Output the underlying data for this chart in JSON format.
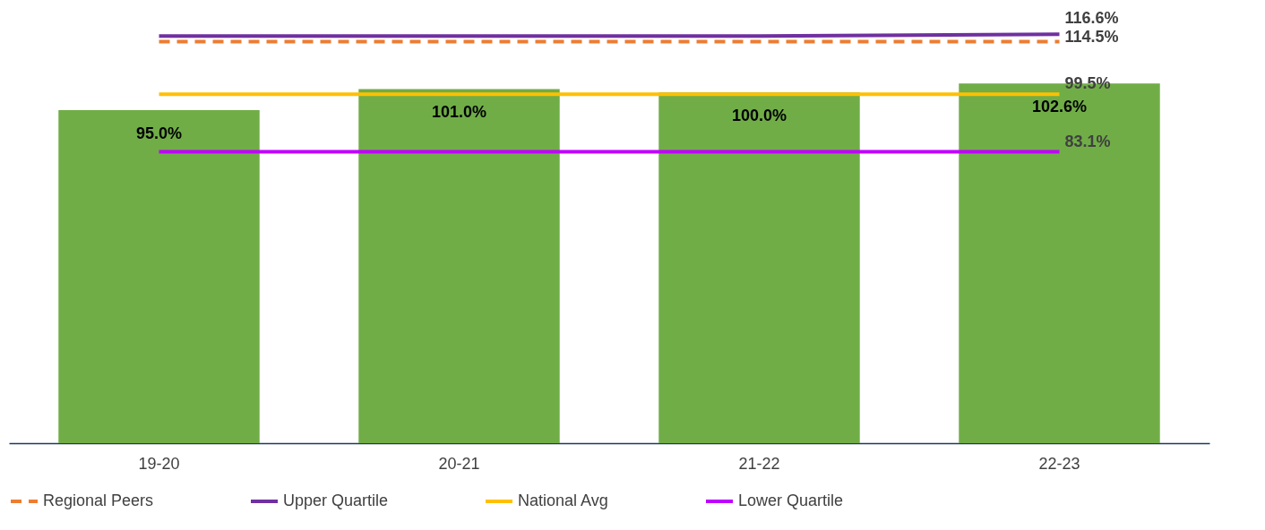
{
  "chart_data": {
    "type": "bar",
    "categories": [
      "19-20",
      "20-21",
      "21-22",
      "22-23"
    ],
    "tick_labels": "x",
    "legend": "bottom",
    "grid": false,
    "series": [
      {
        "color": "#70ad47",
        "values": [
          95.0,
          101.0,
          100.0,
          102.6
        ],
        "value_labels": [
          "95.0%",
          "101.0%",
          "100.0%",
          "102.6%"
        ]
      },
      {
        "type": "line",
        "name": "Regional Peers",
        "color": "#ed7d31",
        "line_style": "dashed",
        "values": [
          114.5,
          114.5,
          114.5,
          114.5
        ],
        "value_labels": [
          null,
          null,
          null,
          "114.5%"
        ]
      },
      {
        "type": "line",
        "name": "Upper Quartile",
        "color": "#7030a0",
        "line_style": "solid",
        "values": [
          116.1,
          116.1,
          116.1,
          116.6
        ],
        "value_labels": [
          null,
          null,
          null,
          "116.6%"
        ]
      },
      {
        "type": "line",
        "name": "National Avg",
        "color": "#ffc000",
        "line_style": "solid",
        "values": [
          99.5,
          99.5,
          99.5,
          99.5
        ],
        "value_labels": [
          null,
          null,
          null,
          "99.5%"
        ]
      },
      {
        "type": "line",
        "name": "Lower Quartile",
        "color": "#c000ff",
        "line_style": "solid",
        "values": [
          83.1,
          83.1,
          83.1,
          83.1
        ],
        "value_labels": [
          null,
          null,
          null,
          "83.1%"
        ]
      }
    ]
  }
}
